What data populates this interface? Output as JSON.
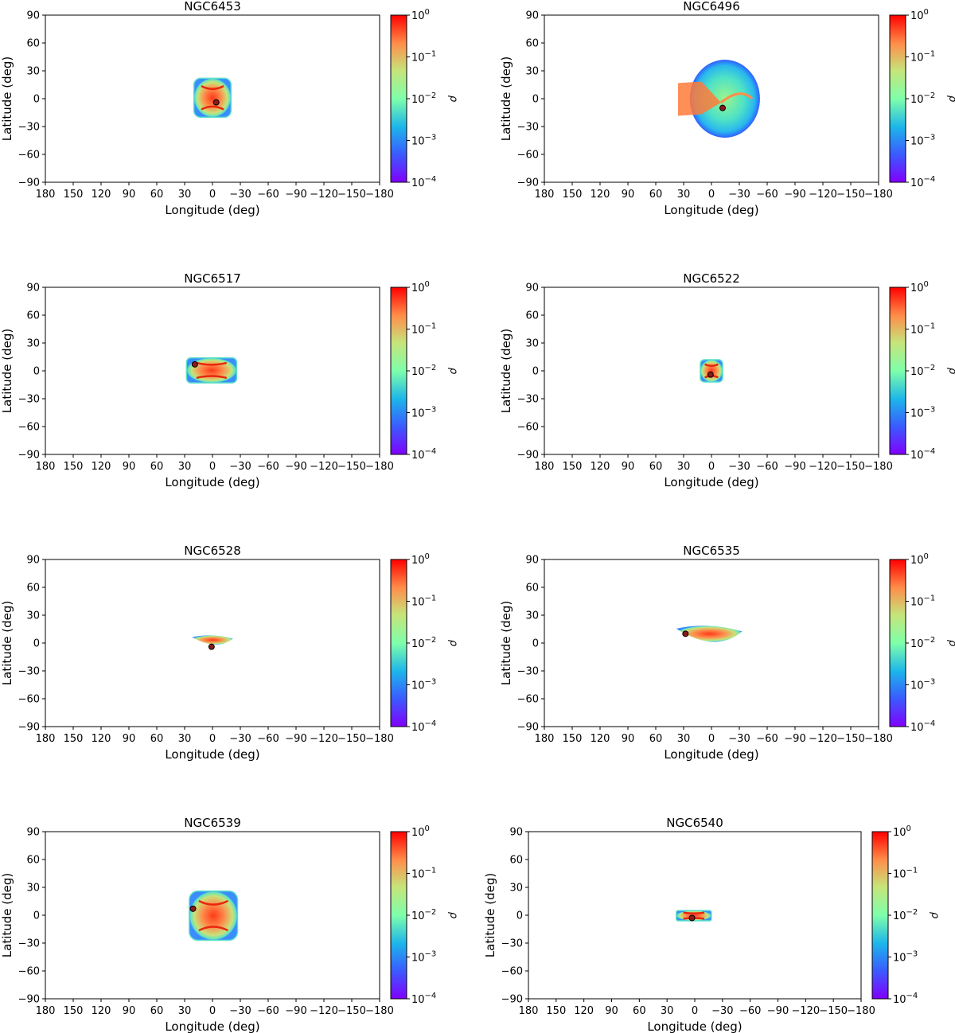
{
  "colors": {
    "axis": "#000000",
    "background": "#ffffff",
    "marker": "#8b1a1a"
  },
  "chart_data": [
    {
      "type": "heatmap",
      "title": "NGC6453",
      "xlabel": "Longitude (deg)",
      "ylabel": "Latitude (deg)",
      "xlim": [
        180,
        -180
      ],
      "ylim": [
        -90,
        90
      ],
      "xticks": [
        180,
        150,
        120,
        90,
        60,
        30,
        0,
        -30,
        -60,
        -90,
        -120,
        -150,
        -180
      ],
      "yticks": [
        -90,
        -60,
        -30,
        0,
        30,
        60,
        90
      ],
      "colorbar": {
        "label": "ρ",
        "scale": "log",
        "range": [
          0.0001,
          1
        ],
        "ticks": [
          "10^-4",
          "10^-3",
          "10^-2",
          "10^-1",
          "10^0"
        ]
      },
      "region": {
        "lon_min": -20,
        "lon_max": 20,
        "lat_min": -20,
        "lat_max": 22,
        "shape": "box"
      },
      "point": {
        "lon": -4,
        "lat": -4
      }
    },
    {
      "type": "heatmap",
      "title": "NGC6496",
      "xlabel": "Longitude (deg)",
      "ylabel": "Latitude (deg)",
      "xlim": [
        180,
        -180
      ],
      "ylim": [
        -90,
        90
      ],
      "xticks": [
        180,
        150,
        120,
        90,
        60,
        30,
        0,
        -30,
        -60,
        -90,
        -120,
        -150,
        -180
      ],
      "yticks": [
        -90,
        -60,
        -30,
        0,
        30,
        60,
        90
      ],
      "colorbar": {
        "label": "ρ",
        "scale": "log",
        "range": [
          0.0001,
          1
        ],
        "ticks": [
          "10^-4",
          "10^-3",
          "10^-2",
          "10^-1",
          "10^0"
        ]
      },
      "region": {
        "lon_min": -48,
        "lon_max": 36,
        "lat_min": -42,
        "lat_max": 42,
        "shape": "blob"
      },
      "point": {
        "lon": -12,
        "lat": -10
      }
    },
    {
      "type": "heatmap",
      "title": "NGC6517",
      "xlabel": "Longitude (deg)",
      "ylabel": "Latitude (deg)",
      "xlim": [
        180,
        -180
      ],
      "ylim": [
        -90,
        90
      ],
      "xticks": [
        180,
        150,
        120,
        90,
        60,
        30,
        0,
        -30,
        -60,
        -90,
        -120,
        -150,
        -180
      ],
      "yticks": [
        -90,
        -60,
        -30,
        0,
        30,
        60,
        90
      ],
      "colorbar": {
        "label": "ρ",
        "scale": "log",
        "range": [
          0.0001,
          1
        ],
        "ticks": [
          "10^-4",
          "10^-3",
          "10^-2",
          "10^-1",
          "10^0"
        ]
      },
      "region": {
        "lon_min": -26,
        "lon_max": 28,
        "lat_min": -13,
        "lat_max": 14,
        "shape": "box"
      },
      "point": {
        "lon": 19,
        "lat": 7
      }
    },
    {
      "type": "heatmap",
      "title": "NGC6522",
      "xlabel": "Longitude (deg)",
      "ylabel": "Latitude (deg)",
      "xlim": [
        180,
        -180
      ],
      "ylim": [
        -90,
        90
      ],
      "xticks": [
        180,
        150,
        120,
        90,
        60,
        30,
        0,
        -30,
        -60,
        -90,
        -120,
        -150,
        -180
      ],
      "yticks": [
        -90,
        -60,
        -30,
        0,
        30,
        60,
        90
      ],
      "colorbar": {
        "label": "ρ",
        "scale": "log",
        "range": [
          0.0001,
          1
        ],
        "ticks": [
          "10^-4",
          "10^-3",
          "10^-2",
          "10^-1",
          "10^0"
        ]
      },
      "region": {
        "lon_min": -12,
        "lon_max": 12,
        "lat_min": -12,
        "lat_max": 12,
        "shape": "box"
      },
      "point": {
        "lon": 1,
        "lat": -4
      }
    },
    {
      "type": "heatmap",
      "title": "NGC6528",
      "xlabel": "Longitude (deg)",
      "ylabel": "Latitude (deg)",
      "xlim": [
        180,
        -180
      ],
      "ylim": [
        -90,
        90
      ],
      "xticks": [
        180,
        150,
        120,
        90,
        60,
        30,
        0,
        -30,
        -60,
        -90,
        -120,
        -150,
        -180
      ],
      "yticks": [
        -90,
        -60,
        -30,
        0,
        30,
        60,
        90
      ],
      "colorbar": {
        "label": "ρ",
        "scale": "log",
        "range": [
          0.0001,
          1
        ],
        "ticks": [
          "10^-4",
          "10^-3",
          "10^-2",
          "10^-1",
          "10^0"
        ]
      },
      "region": {
        "lon_min": -22,
        "lon_max": 22,
        "lat_min": -8,
        "lat_max": 9,
        "shape": "wedge"
      },
      "point": {
        "lon": 1,
        "lat": -4
      }
    },
    {
      "type": "heatmap",
      "title": "NGC6535",
      "xlabel": "Longitude (deg)",
      "ylabel": "Latitude (deg)",
      "xlim": [
        180,
        -180
      ],
      "ylim": [
        -90,
        90
      ],
      "xticks": [
        180,
        150,
        120,
        90,
        60,
        30,
        0,
        -30,
        -60,
        -90,
        -120,
        -150,
        -180
      ],
      "yticks": [
        -90,
        -60,
        -30,
        0,
        30,
        60,
        90
      ],
      "colorbar": {
        "label": "ρ",
        "scale": "log",
        "range": [
          0.0001,
          1
        ],
        "ticks": [
          "10^-4",
          "10^-3",
          "10^-2",
          "10^-1",
          "10^0"
        ]
      },
      "region": {
        "lon_min": -33,
        "lon_max": 38,
        "lat_min": -10,
        "lat_max": 20,
        "shape": "wedge"
      },
      "point": {
        "lon": 28,
        "lat": 10
      }
    },
    {
      "type": "heatmap",
      "title": "NGC6539",
      "xlabel": "Longitude (deg)",
      "ylabel": "Latitude (deg)",
      "xlim": [
        180,
        -180
      ],
      "ylim": [
        -90,
        90
      ],
      "xticks": [
        180,
        150,
        120,
        90,
        60,
        30,
        0,
        -30,
        -60,
        -90,
        -120,
        -150,
        -180
      ],
      "yticks": [
        -90,
        -60,
        -30,
        0,
        30,
        60,
        90
      ],
      "colorbar": {
        "label": "ρ",
        "scale": "log",
        "range": [
          0.0001,
          1
        ],
        "ticks": [
          "10^-4",
          "10^-3",
          "10^-2",
          "10^-1",
          "10^0"
        ]
      },
      "region": {
        "lon_min": -27,
        "lon_max": 25,
        "lat_min": -27,
        "lat_max": 26,
        "shape": "box"
      },
      "point": {
        "lon": 21,
        "lat": 7
      }
    },
    {
      "type": "heatmap",
      "title": "NGC6540",
      "xlabel": "Longitude (deg)",
      "ylabel": "Latitude (deg)",
      "xlim": [
        180,
        -180
      ],
      "ylim": [
        -90,
        90
      ],
      "xticks": [
        180,
        150,
        120,
        90,
        60,
        30,
        0,
        -30,
        -60,
        -90,
        -120,
        -150,
        -180
      ],
      "yticks": [
        -90,
        -60,
        -30,
        0,
        30,
        60,
        90
      ],
      "colorbar": {
        "label": "ρ",
        "scale": "log",
        "range": [
          0.0001,
          1
        ],
        "ticks": [
          "10^-4",
          "10^-3",
          "10^-2",
          "10^-1",
          "10^0"
        ]
      },
      "region": {
        "lon_min": -18,
        "lon_max": 20,
        "lat_min": -6,
        "lat_max": 5,
        "shape": "box"
      },
      "point": {
        "lon": 3,
        "lat": -3
      }
    }
  ]
}
